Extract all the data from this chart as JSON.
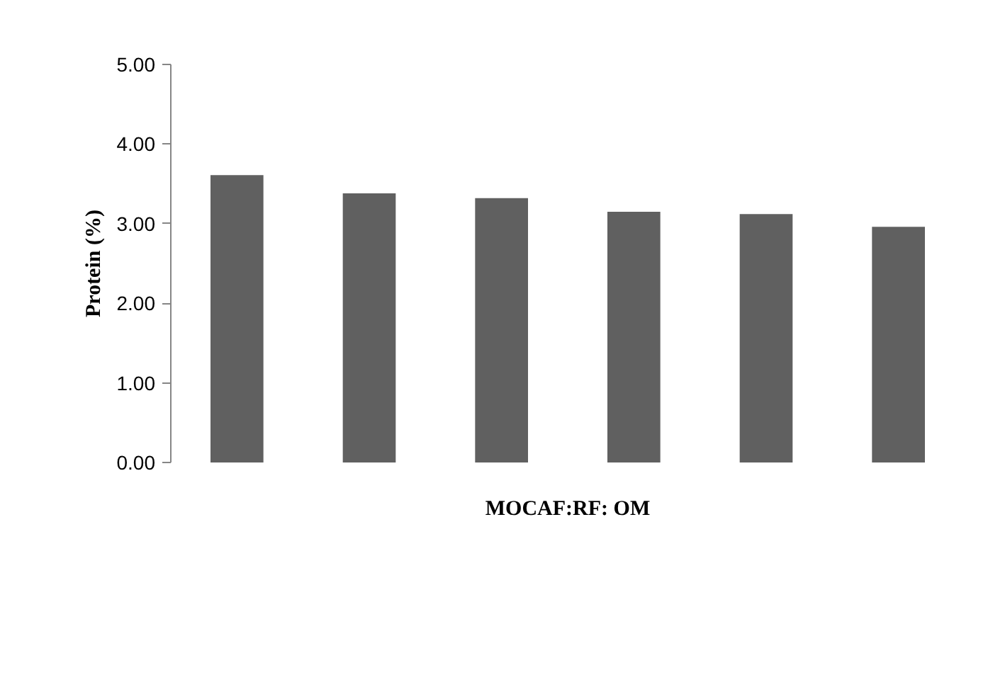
{
  "chart_data": {
    "type": "bar",
    "xlabel": "MOCAF:RF: OM",
    "ylabel": "Protein (%)",
    "categories": [
      null,
      null,
      null,
      null,
      null,
      null
    ],
    "values": [
      3.61,
      3.38,
      3.32,
      3.15,
      3.12,
      2.96
    ],
    "color": "#606060",
    "ylim": [
      0,
      5
    ],
    "yticks": [
      {
        "value": 0,
        "label": "0.00"
      },
      {
        "value": 1,
        "label": "1.00"
      },
      {
        "value": 2,
        "label": "2.00"
      },
      {
        "value": 3,
        "label": "3.00"
      },
      {
        "value": 4,
        "label": "4.00"
      },
      {
        "value": 5,
        "label": "5.00"
      }
    ],
    "grid": false
  }
}
